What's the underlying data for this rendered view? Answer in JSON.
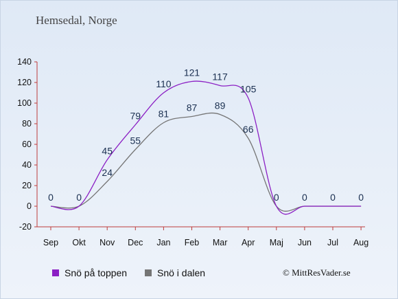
{
  "header": {
    "title": "Hemsedal, Norge"
  },
  "legend": {
    "series1": "Snö på toppen",
    "series2": "Snö i dalen"
  },
  "credit": "© MittResVader.se",
  "colors": {
    "series1": "#8b1fc4",
    "series2": "#757575",
    "axis": "#bd3b3b"
  },
  "chart_data": {
    "type": "line",
    "title": "Hemsedal, Norge",
    "categories": [
      "Sep",
      "Okt",
      "Nov",
      "Dec",
      "Jan",
      "Feb",
      "Mar",
      "Apr",
      "Maj",
      "Jun",
      "Jul",
      "Aug"
    ],
    "ylim": [
      -20,
      140
    ],
    "yticks": [
      -20,
      0,
      20,
      40,
      60,
      80,
      100,
      120,
      140
    ],
    "grid": false,
    "legend_position": "bottom",
    "series": [
      {
        "name": "Snö på toppen",
        "values": [
          0,
          0,
          45,
          79,
          110,
          121,
          117,
          105,
          0,
          0,
          0,
          0
        ]
      },
      {
        "name": "Snö i dalen",
        "values": [
          0,
          0,
          24,
          55,
          81,
          87,
          89,
          66,
          0,
          0,
          0,
          0
        ]
      }
    ],
    "labels": [
      {
        "category": "Sep",
        "value": 0,
        "text": "0"
      },
      {
        "category": "Okt",
        "value": 0,
        "text": "0"
      },
      {
        "category": "Nov",
        "value": 45,
        "text": "45"
      },
      {
        "category": "Dec",
        "value": 79,
        "text": "79"
      },
      {
        "category": "Jan",
        "value": 110,
        "text": "110"
      },
      {
        "category": "Feb",
        "value": 121,
        "text": "121"
      },
      {
        "category": "Mar",
        "value": 117,
        "text": "117"
      },
      {
        "category": "Apr",
        "value": 105,
        "text": "105"
      },
      {
        "category": "Nov",
        "value": 24,
        "text": "24"
      },
      {
        "category": "Dec",
        "value": 55,
        "text": "55"
      },
      {
        "category": "Jan",
        "value": 81,
        "text": "81"
      },
      {
        "category": "Feb",
        "value": 87,
        "text": "87"
      },
      {
        "category": "Mar",
        "value": 89,
        "text": "89"
      },
      {
        "category": "Apr",
        "value": 66,
        "text": "66"
      },
      {
        "category": "Maj",
        "value": 0,
        "text": "0"
      },
      {
        "category": "Jun",
        "value": 0,
        "text": "0"
      },
      {
        "category": "Jul",
        "value": 0,
        "text": "0"
      },
      {
        "category": "Aug",
        "value": 0,
        "text": "0"
      }
    ]
  }
}
